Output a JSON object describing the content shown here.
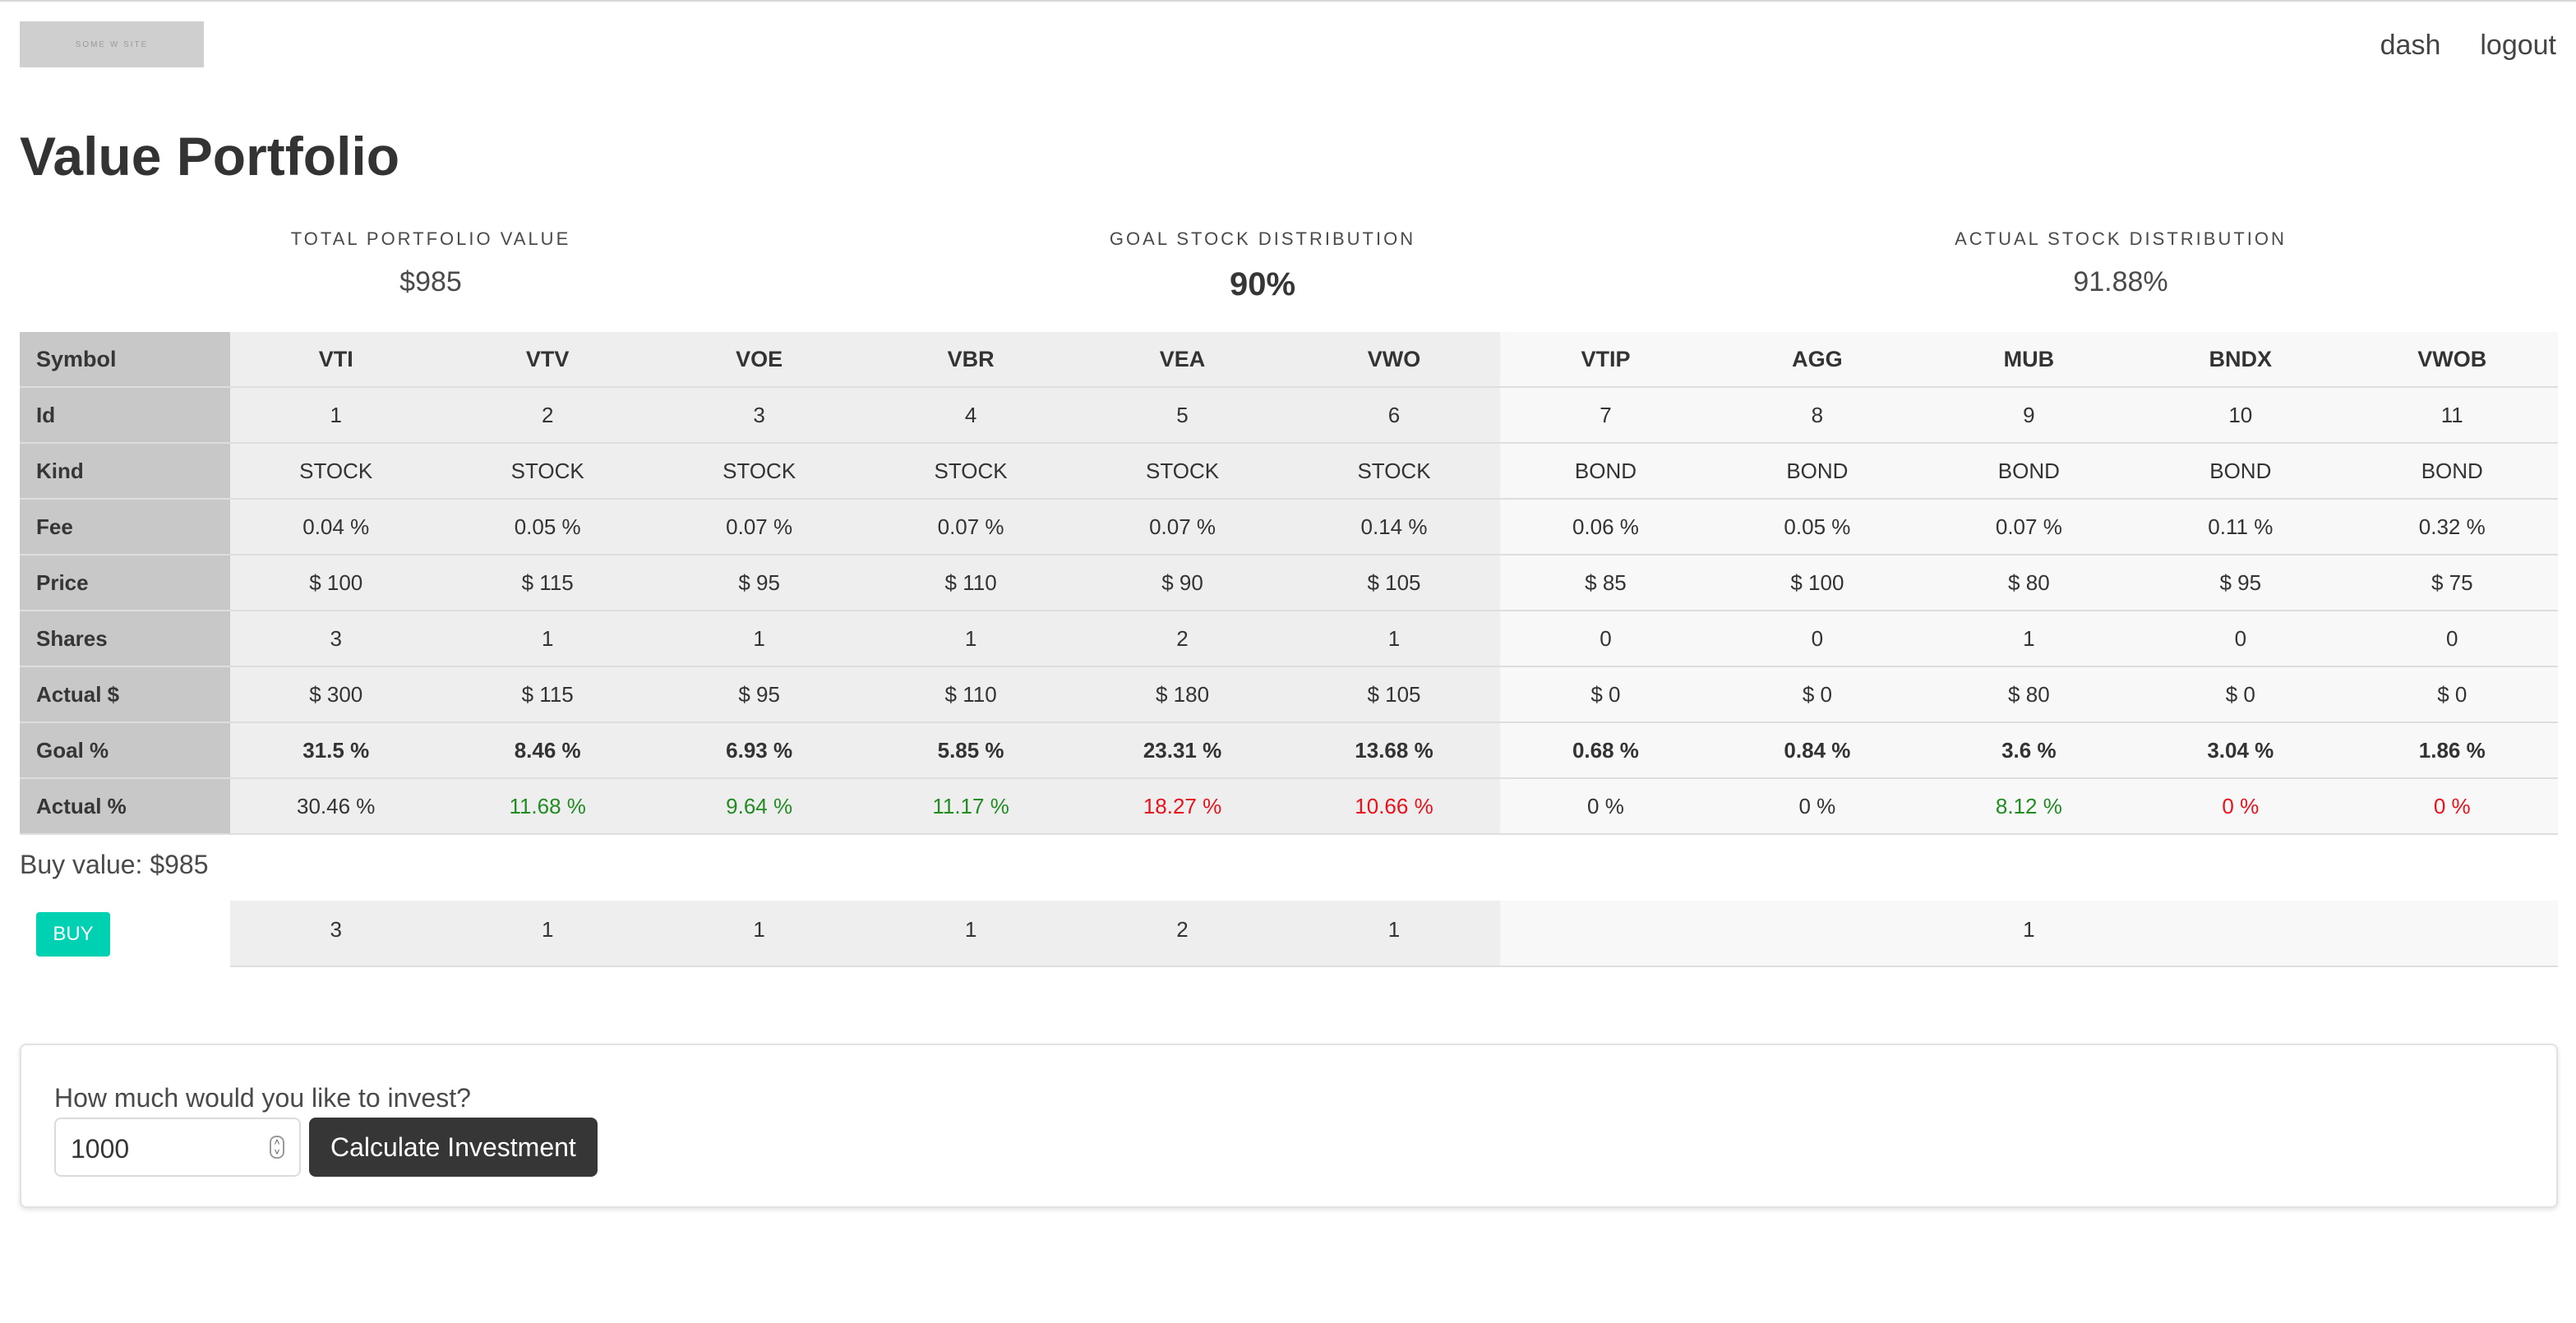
{
  "nav": {
    "logo_text": "SOME W SITE",
    "links": [
      "dash",
      "logout"
    ]
  },
  "page": {
    "title": "Value Portfolio"
  },
  "stats": [
    {
      "label": "TOTAL PORTFOLIO VALUE",
      "value": "$985"
    },
    {
      "label": "GOAL STOCK DISTRIBUTION",
      "value": "90%"
    },
    {
      "label": "ACTUAL STOCK DISTRIBUTION",
      "value": "91.88%"
    }
  ],
  "table": {
    "row_labels": [
      "Symbol",
      "Id",
      "Kind",
      "Fee",
      "Price",
      "Shares",
      "Actual $",
      "Goal %",
      "Actual %"
    ],
    "funds": [
      {
        "symbol": "VTI",
        "id": "1",
        "kind": "STOCK",
        "fee": "0.04 %",
        "price": "$ 100",
        "shares": "3",
        "actual_value": "$ 300",
        "goal_pct": "31.5 %",
        "actual_pct": "30.46 %",
        "actual_pct_status": "neutral",
        "buy": "3"
      },
      {
        "symbol": "VTV",
        "id": "2",
        "kind": "STOCK",
        "fee": "0.05 %",
        "price": "$ 115",
        "shares": "1",
        "actual_value": "$ 115",
        "goal_pct": "8.46 %",
        "actual_pct": "11.68 %",
        "actual_pct_status": "over",
        "buy": "1"
      },
      {
        "symbol": "VOE",
        "id": "3",
        "kind": "STOCK",
        "fee": "0.07 %",
        "price": "$ 95",
        "shares": "1",
        "actual_value": "$ 95",
        "goal_pct": "6.93 %",
        "actual_pct": "9.64 %",
        "actual_pct_status": "over",
        "buy": "1"
      },
      {
        "symbol": "VBR",
        "id": "4",
        "kind": "STOCK",
        "fee": "0.07 %",
        "price": "$ 110",
        "shares": "1",
        "actual_value": "$ 110",
        "goal_pct": "5.85 %",
        "actual_pct": "11.17 %",
        "actual_pct_status": "over",
        "buy": "1"
      },
      {
        "symbol": "VEA",
        "id": "5",
        "kind": "STOCK",
        "fee": "0.07 %",
        "price": "$ 90",
        "shares": "2",
        "actual_value": "$ 180",
        "goal_pct": "23.31 %",
        "actual_pct": "18.27 %",
        "actual_pct_status": "under",
        "buy": "2"
      },
      {
        "symbol": "VWO",
        "id": "6",
        "kind": "STOCK",
        "fee": "0.14 %",
        "price": "$ 105",
        "shares": "1",
        "actual_value": "$ 105",
        "goal_pct": "13.68 %",
        "actual_pct": "10.66 %",
        "actual_pct_status": "under",
        "buy": "1"
      },
      {
        "symbol": "VTIP",
        "id": "7",
        "kind": "BOND",
        "fee": "0.06 %",
        "price": "$ 85",
        "shares": "0",
        "actual_value": "$ 0",
        "goal_pct": "0.68 %",
        "actual_pct": "0 %",
        "actual_pct_status": "neutral",
        "buy": ""
      },
      {
        "symbol": "AGG",
        "id": "8",
        "kind": "BOND",
        "fee": "0.05 %",
        "price": "$ 100",
        "shares": "0",
        "actual_value": "$ 0",
        "goal_pct": "0.84 %",
        "actual_pct": "0 %",
        "actual_pct_status": "neutral",
        "buy": ""
      },
      {
        "symbol": "MUB",
        "id": "9",
        "kind": "BOND",
        "fee": "0.07 %",
        "price": "$ 80",
        "shares": "1",
        "actual_value": "$ 80",
        "goal_pct": "3.6 %",
        "actual_pct": "8.12 %",
        "actual_pct_status": "over",
        "buy": "1"
      },
      {
        "symbol": "BNDX",
        "id": "10",
        "kind": "BOND",
        "fee": "0.11 %",
        "price": "$ 95",
        "shares": "0",
        "actual_value": "$ 0",
        "goal_pct": "3.04 %",
        "actual_pct": "0 %",
        "actual_pct_status": "under",
        "buy": ""
      },
      {
        "symbol": "VWOB",
        "id": "11",
        "kind": "BOND",
        "fee": "0.32 %",
        "price": "$ 75",
        "shares": "0",
        "actual_value": "$ 0",
        "goal_pct": "1.86 %",
        "actual_pct": "0 %",
        "actual_pct_status": "under",
        "buy": ""
      }
    ]
  },
  "buy": {
    "value_text": "Buy value: $985",
    "button_label": "BUY"
  },
  "invest": {
    "question": "How much would you like to invest?",
    "amount": "1000",
    "button_label": "Calculate Investment"
  },
  "colors": {
    "over": "#228b22",
    "under": "#e8121c",
    "accent": "#00d1b2",
    "dark_button": "#363636"
  }
}
